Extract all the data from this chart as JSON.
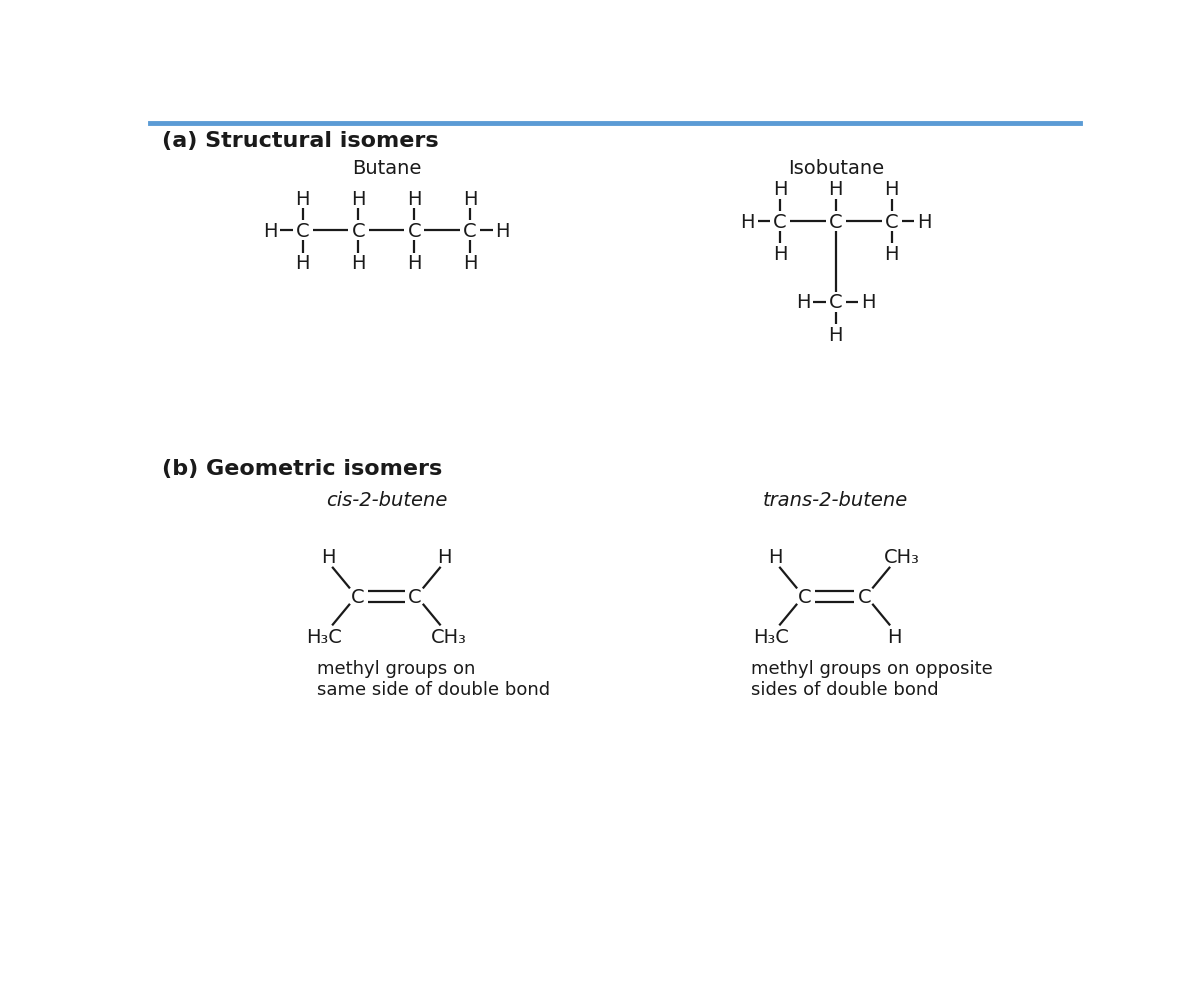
{
  "bg_color": "#ffffff",
  "border_color": "#5b9bd5",
  "text_color": "#1a1a1a",
  "section_a_label": "(a) Structural isomers",
  "section_b_label": "(b) Geometric isomers",
  "butane_title": "Butane",
  "isobutane_title": "Isobutane",
  "cis_title": "cis-2-butene",
  "trans_title": "trans-2-butene",
  "cis_description": "methyl groups on\nsame side of double bond",
  "trans_description": "methyl groups on opposite\nsides of double bond",
  "font_size_label": 16,
  "font_size_title": 14,
  "font_size_atom": 14,
  "font_size_desc": 13
}
